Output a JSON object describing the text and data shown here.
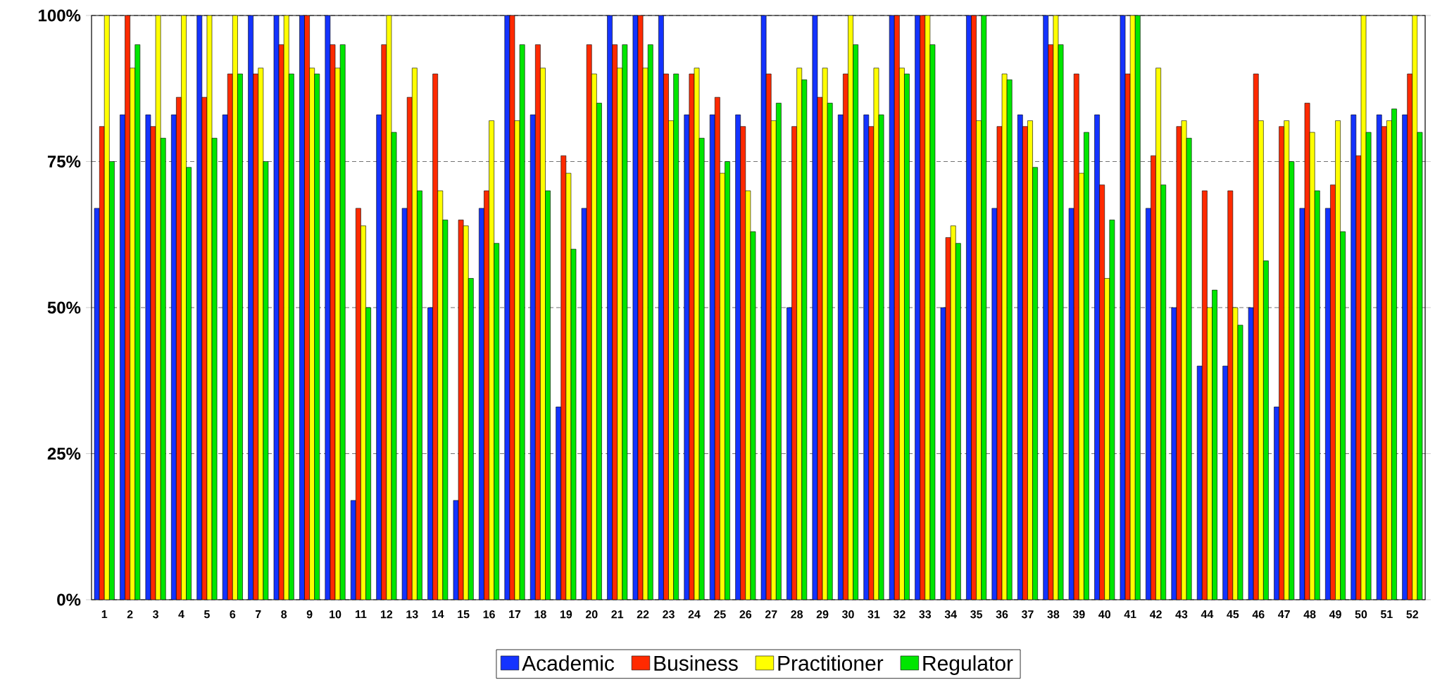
{
  "chart_data": {
    "type": "bar",
    "categories": [
      "1",
      "2",
      "3",
      "4",
      "5",
      "6",
      "7",
      "8",
      "9",
      "10",
      "11",
      "12",
      "13",
      "14",
      "15",
      "16",
      "17",
      "18",
      "19",
      "20",
      "21",
      "22",
      "23",
      "24",
      "25",
      "26",
      "27",
      "28",
      "29",
      "30",
      "31",
      "32",
      "33",
      "34",
      "35",
      "36",
      "37",
      "38",
      "39",
      "40",
      "41",
      "42",
      "43",
      "44",
      "45",
      "46",
      "47",
      "48",
      "49",
      "50",
      "51",
      "52"
    ],
    "series": [
      {
        "name": "Academic",
        "color": "#1433ff",
        "values": [
          67,
          83,
          83,
          83,
          100,
          83,
          100,
          100,
          100,
          100,
          17,
          83,
          67,
          50,
          17,
          67,
          100,
          83,
          33,
          67,
          100,
          100,
          100,
          83,
          83,
          83,
          100,
          50,
          100,
          83,
          83,
          100,
          100,
          50,
          100,
          67,
          83,
          100,
          67,
          83,
          100,
          67,
          50,
          40,
          40,
          50,
          33,
          67,
          67,
          83,
          83,
          83
        ]
      },
      {
        "name": "Business",
        "color": "#ff2a00",
        "values": [
          81,
          100,
          81,
          86,
          86,
          90,
          90,
          95,
          100,
          95,
          67,
          95,
          86,
          90,
          65,
          70,
          100,
          95,
          76,
          95,
          95,
          100,
          90,
          90,
          86,
          81,
          90,
          81,
          86,
          90,
          81,
          100,
          100,
          62,
          100,
          81,
          81,
          95,
          90,
          71,
          90,
          76,
          81,
          70,
          70,
          90,
          81,
          85,
          71,
          76,
          81,
          90
        ]
      },
      {
        "name": "Practitioner",
        "color": "#ffff00",
        "values": [
          100,
          91,
          100,
          100,
          100,
          100,
          91,
          100,
          91,
          91,
          64,
          100,
          91,
          70,
          64,
          82,
          82,
          91,
          73,
          90,
          91,
          91,
          82,
          91,
          73,
          70,
          82,
          91,
          91,
          100,
          91,
          91,
          100,
          64,
          82,
          90,
          82,
          100,
          73,
          55,
          100,
          91,
          82,
          50,
          50,
          82,
          82,
          80,
          82,
          100,
          82,
          100
        ]
      },
      {
        "name": "Regulator",
        "color": "#00e600",
        "values": [
          75,
          95,
          79,
          74,
          79,
          90,
          75,
          90,
          90,
          95,
          50,
          80,
          70,
          65,
          55,
          61,
          95,
          70,
          60,
          85,
          95,
          95,
          90,
          79,
          75,
          63,
          85,
          89,
          85,
          95,
          83,
          90,
          95,
          61,
          100,
          89,
          74,
          95,
          80,
          65,
          100,
          71,
          79,
          53,
          47,
          58,
          75,
          70,
          63,
          80,
          84,
          80
        ]
      }
    ],
    "ylim": [
      0,
      100
    ],
    "yticks": [
      {
        "value": 0,
        "label": "0%"
      },
      {
        "value": 25,
        "label": "25%"
      },
      {
        "value": 50,
        "label": "50%"
      },
      {
        "value": 75,
        "label": "75%"
      },
      {
        "value": 100,
        "label": "100%"
      }
    ],
    "grid": "y",
    "legend": "bottom"
  }
}
